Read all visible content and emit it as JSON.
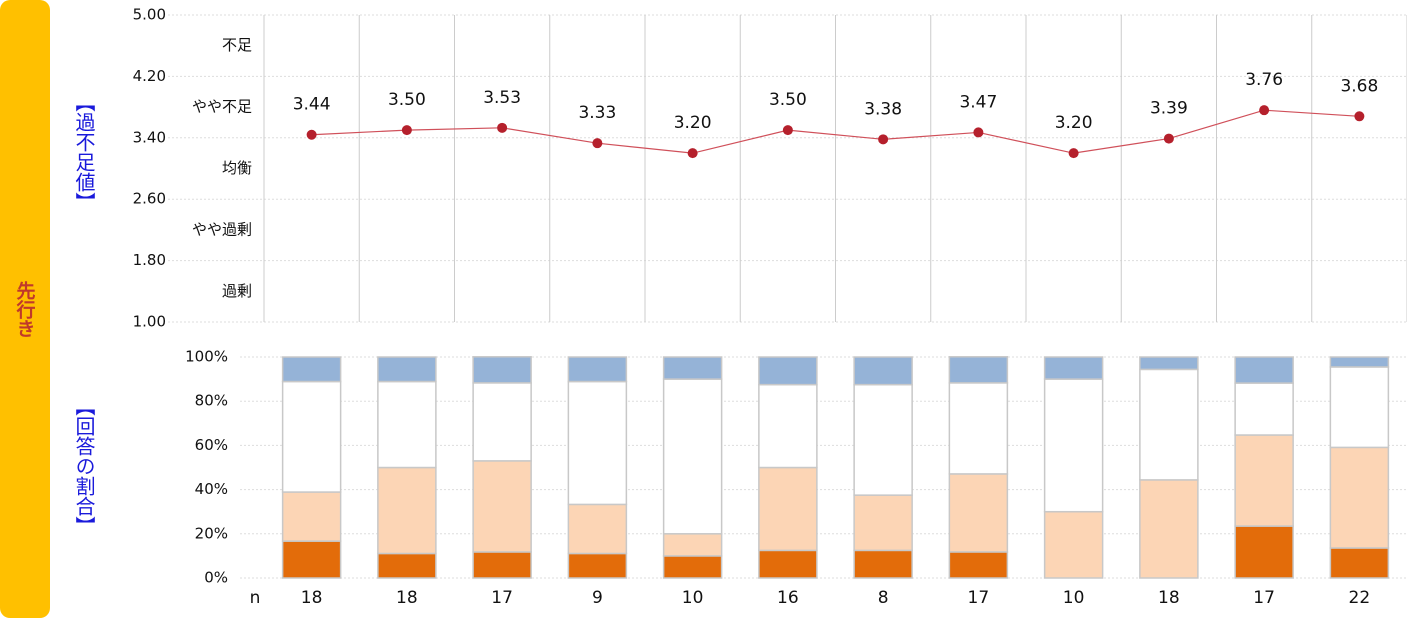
{
  "labels": {
    "side": "先行き",
    "line_axis": "【過不足値】",
    "bar_axis": "【回答の割合】"
  },
  "chart_data": [
    {
      "type": "line",
      "color": "#d0505a",
      "marker_color": "#b5202c",
      "values": [
        3.44,
        3.5,
        3.53,
        3.33,
        3.2,
        3.5,
        3.38,
        3.47,
        3.2,
        3.39,
        3.76,
        3.68
      ],
      "value_labels": [
        "3.44",
        "3.50",
        "3.53",
        "3.33",
        "3.20",
        "3.50",
        "3.38",
        "3.47",
        "3.20",
        "3.39",
        "3.76",
        "3.68"
      ],
      "ylim": [
        1,
        5
      ],
      "yticks": [
        {
          "value": 5,
          "label": "5.00"
        },
        {
          "value": 4.2,
          "label": "4.20"
        },
        {
          "value": 3.4,
          "label": "3.40"
        },
        {
          "value": 2.6,
          "label": "2.60"
        },
        {
          "value": 1.8,
          "label": "1.80"
        },
        {
          "value": 1,
          "label": "1.00"
        }
      ],
      "band_labels": [
        "不足",
        "やや不足",
        "均衡",
        "やや過剰",
        "過剰"
      ],
      "grid": true
    },
    {
      "type": "stacked_bar",
      "series": [
        {
          "color": "#e36c0a",
          "values": [
            16.7,
            11.1,
            11.8,
            11.1,
            10,
            12.5,
            12.5,
            11.8,
            0,
            0,
            23.5,
            13.6
          ]
        },
        {
          "color": "#fcd5b5",
          "values": [
            22.2,
            38.9,
            41.2,
            22.2,
            10,
            37.5,
            25,
            35.3,
            30,
            44.4,
            41.2,
            45.5
          ]
        },
        {
          "color": "#ffffff",
          "values": [
            50,
            38.9,
            35.3,
            55.6,
            70,
            37.5,
            50,
            41.2,
            60,
            50,
            23.5,
            36.4
          ]
        },
        {
          "color": "#95b3d7",
          "values": [
            11.1,
            11.1,
            11.8,
            11.1,
            10,
            12.5,
            12.5,
            11.8,
            10,
            5.6,
            11.8,
            4.5
          ]
        }
      ],
      "ylim": [
        0,
        100
      ],
      "yticks": [
        {
          "value": 0,
          "label": "0%"
        },
        {
          "value": 20,
          "label": "20%"
        },
        {
          "value": 40,
          "label": "40%"
        },
        {
          "value": 60,
          "label": "60%"
        },
        {
          "value": 80,
          "label": "80%"
        },
        {
          "value": 100,
          "label": "100%"
        }
      ],
      "n_label": "n",
      "n": [
        18,
        18,
        17,
        9,
        10,
        16,
        8,
        17,
        10,
        18,
        17,
        22
      ],
      "grid": true
    }
  ]
}
